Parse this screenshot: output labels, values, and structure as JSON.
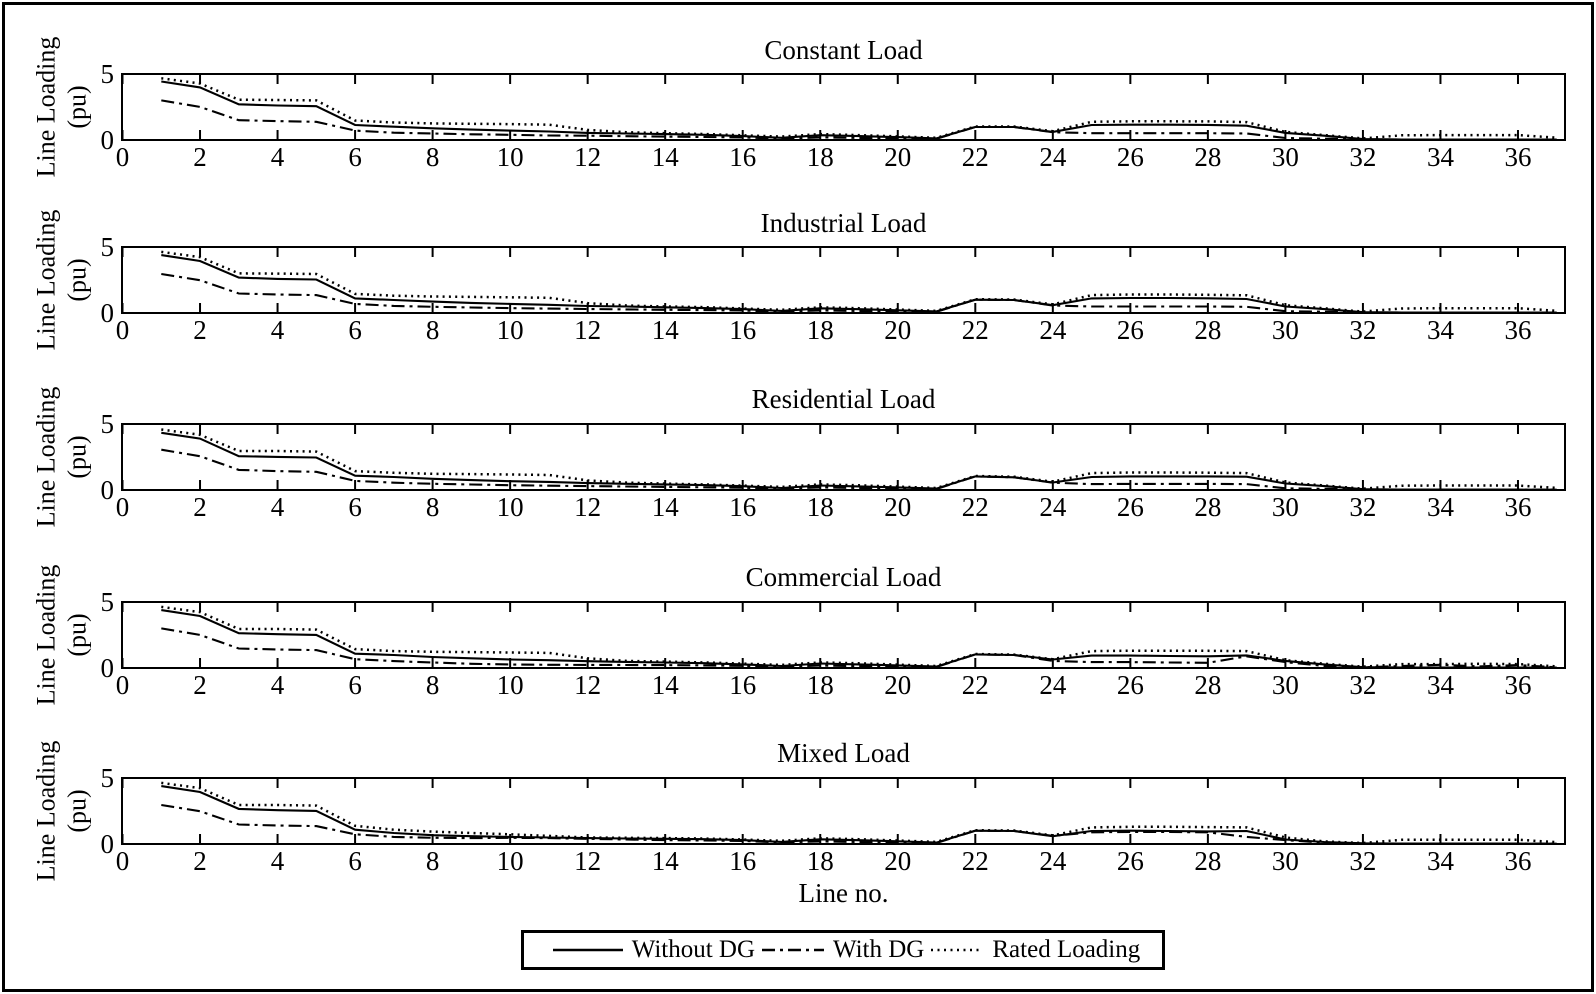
{
  "figure": {
    "background": "#ffffff",
    "foreground": "#000000",
    "xaxis_label": "Line no.",
    "ylabel_line1": "Line Loading",
    "ylabel_line2": "(pu)",
    "ytick_top": "5",
    "ytick_bottom": "0"
  },
  "chart_data": {
    "type": "line",
    "xlabel": "Line no.",
    "ylabel": "Line Loading (pu)",
    "ylim": [
      0,
      5
    ],
    "xlim": [
      0,
      37.2
    ],
    "x_ticks": [
      0,
      2,
      4,
      6,
      8,
      10,
      12,
      14,
      16,
      18,
      20,
      22,
      24,
      26,
      28,
      30,
      32,
      34,
      36
    ],
    "y_ticks": [
      0,
      5
    ],
    "grid": "off",
    "legend_position": "bottom-center",
    "line_color": "#000000",
    "x": [
      1,
      2,
      3,
      4,
      5,
      6,
      7,
      8,
      9,
      10,
      11,
      12,
      13,
      14,
      15,
      16,
      17,
      18,
      19,
      20,
      21,
      22,
      23,
      24,
      25,
      26,
      27,
      28,
      29,
      30,
      31,
      32,
      33,
      34,
      35,
      36,
      37
    ],
    "legend": [
      {
        "label": "Without DG",
        "style": "solid"
      },
      {
        "label": "With DG",
        "style": "dashdot"
      },
      {
        "label": "Rated Loading",
        "style": "dotted"
      }
    ],
    "panels": [
      {
        "title": "Constant Load",
        "series": {
          "without_dg": [
            4.5,
            4.05,
            2.75,
            2.65,
            2.6,
            1.15,
            1.02,
            0.9,
            0.8,
            0.72,
            0.65,
            0.55,
            0.5,
            0.45,
            0.4,
            0.3,
            0.17,
            0.37,
            0.3,
            0.22,
            0.12,
            1.0,
            1.0,
            0.62,
            1.15,
            1.18,
            1.18,
            1.16,
            1.1,
            0.55,
            0.33,
            0.07,
            0.04,
            0.04,
            0.04,
            0.04,
            0.03
          ],
          "with_dg": [
            3.05,
            2.55,
            1.52,
            1.45,
            1.4,
            0.72,
            0.56,
            0.5,
            0.44,
            0.4,
            0.35,
            0.33,
            0.29,
            0.26,
            0.23,
            0.2,
            0.1,
            0.2,
            0.16,
            0.12,
            0.1,
            1.0,
            1.0,
            0.6,
            0.52,
            0.52,
            0.52,
            0.52,
            0.5,
            0.15,
            0.1,
            0.04,
            0.03,
            0.03,
            0.03,
            0.03,
            0.02
          ],
          "rated": [
            4.75,
            4.35,
            3.1,
            3.08,
            3.05,
            1.5,
            1.35,
            1.28,
            1.25,
            1.22,
            1.18,
            0.78,
            0.6,
            0.52,
            0.46,
            0.36,
            0.26,
            0.45,
            0.38,
            0.28,
            0.17,
            1.04,
            1.04,
            0.68,
            1.4,
            1.44,
            1.44,
            1.43,
            1.38,
            0.62,
            0.38,
            0.12,
            0.36,
            0.38,
            0.38,
            0.38,
            0.18
          ]
        }
      },
      {
        "title": "Industrial Load",
        "series": {
          "without_dg": [
            4.45,
            4.0,
            2.72,
            2.62,
            2.58,
            1.12,
            1.0,
            0.88,
            0.78,
            0.7,
            0.63,
            0.54,
            0.5,
            0.44,
            0.38,
            0.3,
            0.16,
            0.36,
            0.29,
            0.21,
            0.12,
            1.02,
            1.0,
            0.6,
            1.12,
            1.15,
            1.15,
            1.13,
            1.08,
            0.5,
            0.3,
            0.06,
            0.04,
            0.04,
            0.04,
            0.04,
            0.03
          ],
          "with_dg": [
            3.0,
            2.52,
            1.5,
            1.42,
            1.38,
            0.7,
            0.55,
            0.48,
            0.42,
            0.38,
            0.34,
            0.31,
            0.28,
            0.25,
            0.22,
            0.19,
            0.1,
            0.2,
            0.15,
            0.12,
            0.09,
            1.02,
            1.0,
            0.58,
            0.5,
            0.5,
            0.5,
            0.5,
            0.48,
            0.14,
            0.1,
            0.04,
            0.03,
            0.03,
            0.03,
            0.03,
            0.02
          ],
          "rated": [
            4.7,
            4.3,
            3.05,
            3.03,
            3.0,
            1.47,
            1.33,
            1.27,
            1.24,
            1.21,
            1.17,
            0.76,
            0.58,
            0.5,
            0.45,
            0.35,
            0.25,
            0.44,
            0.37,
            0.27,
            0.16,
            1.06,
            1.04,
            0.66,
            1.38,
            1.42,
            1.42,
            1.4,
            1.36,
            0.6,
            0.36,
            0.11,
            0.35,
            0.37,
            0.37,
            0.37,
            0.17
          ]
        }
      },
      {
        "title": "Residential Load",
        "series": {
          "without_dg": [
            4.4,
            3.95,
            2.6,
            2.55,
            2.5,
            1.1,
            1.0,
            0.86,
            0.76,
            0.68,
            0.62,
            0.53,
            0.48,
            0.43,
            0.38,
            0.29,
            0.15,
            0.35,
            0.28,
            0.2,
            0.11,
            1.05,
            0.98,
            0.58,
            1.0,
            1.05,
            1.05,
            1.05,
            1.02,
            0.5,
            0.3,
            0.06,
            0.03,
            0.03,
            0.03,
            0.03,
            0.02
          ],
          "with_dg": [
            3.1,
            2.6,
            1.55,
            1.45,
            1.4,
            0.7,
            0.56,
            0.48,
            0.42,
            0.37,
            0.33,
            0.3,
            0.27,
            0.24,
            0.21,
            0.18,
            0.1,
            0.2,
            0.15,
            0.11,
            0.08,
            1.05,
            0.98,
            0.56,
            0.45,
            0.47,
            0.47,
            0.47,
            0.45,
            0.13,
            0.09,
            0.04,
            0.02,
            0.02,
            0.02,
            0.02,
            0.02
          ],
          "rated": [
            4.65,
            4.25,
            3.0,
            3.0,
            2.95,
            1.45,
            1.32,
            1.25,
            1.22,
            1.19,
            1.15,
            0.74,
            0.57,
            0.49,
            0.43,
            0.34,
            0.24,
            0.43,
            0.36,
            0.26,
            0.15,
            1.08,
            1.02,
            0.64,
            1.3,
            1.35,
            1.35,
            1.33,
            1.3,
            0.58,
            0.35,
            0.1,
            0.33,
            0.35,
            0.35,
            0.35,
            0.16
          ]
        }
      },
      {
        "title": "Commercial Load",
        "series": {
          "without_dg": [
            4.45,
            4.0,
            2.68,
            2.6,
            2.55,
            1.1,
            1.0,
            0.85,
            0.75,
            0.65,
            0.6,
            0.52,
            0.47,
            0.42,
            0.37,
            0.28,
            0.15,
            0.35,
            0.28,
            0.2,
            0.11,
            1.05,
            1.0,
            0.65,
            0.95,
            0.95,
            0.92,
            0.9,
            0.97,
            0.55,
            0.28,
            0.06,
            0.04,
            0.04,
            0.04,
            0.04,
            0.03
          ],
          "with_dg": [
            3.05,
            2.55,
            1.5,
            1.42,
            1.38,
            0.68,
            0.53,
            0.42,
            0.32,
            0.27,
            0.25,
            0.24,
            0.23,
            0.22,
            0.2,
            0.17,
            0.09,
            0.19,
            0.14,
            0.11,
            0.08,
            1.05,
            1.0,
            0.55,
            0.45,
            0.45,
            0.42,
            0.4,
            0.9,
            0.45,
            0.15,
            0.05,
            0.15,
            0.25,
            0.12,
            0.22,
            0.05
          ],
          "rated": [
            4.7,
            4.3,
            3.0,
            3.0,
            2.95,
            1.45,
            1.3,
            1.25,
            1.22,
            1.19,
            1.16,
            0.75,
            0.55,
            0.49,
            0.43,
            0.34,
            0.24,
            0.43,
            0.36,
            0.26,
            0.15,
            1.08,
            1.03,
            0.68,
            1.3,
            1.33,
            1.33,
            1.32,
            1.3,
            0.6,
            0.33,
            0.1,
            0.3,
            0.3,
            0.32,
            0.3,
            0.12
          ]
        }
      },
      {
        "title": "Mixed Load",
        "series": {
          "without_dg": [
            4.45,
            4.0,
            2.7,
            2.6,
            2.55,
            1.1,
            0.85,
            0.68,
            0.6,
            0.55,
            0.5,
            0.45,
            0.42,
            0.4,
            0.37,
            0.3,
            0.16,
            0.36,
            0.29,
            0.21,
            0.11,
            1.02,
            1.0,
            0.6,
            1.0,
            1.02,
            1.0,
            0.97,
            1.0,
            0.35,
            0.15,
            0.05,
            0.03,
            0.03,
            0.03,
            0.03,
            0.02
          ],
          "with_dg": [
            3.0,
            2.52,
            1.5,
            1.42,
            1.38,
            0.75,
            0.55,
            0.48,
            0.45,
            0.48,
            0.45,
            0.4,
            0.35,
            0.3,
            0.27,
            0.24,
            0.12,
            0.2,
            0.15,
            0.11,
            0.08,
            1.02,
            1.0,
            0.62,
            0.9,
            0.93,
            0.92,
            0.9,
            0.55,
            0.3,
            0.1,
            0.04,
            0.02,
            0.02,
            0.02,
            0.02,
            0.02
          ],
          "rated": [
            4.7,
            4.3,
            3.0,
            3.0,
            2.95,
            1.4,
            1.1,
            0.95,
            0.85,
            0.75,
            0.62,
            0.5,
            0.48,
            0.45,
            0.42,
            0.35,
            0.25,
            0.44,
            0.37,
            0.27,
            0.16,
            1.06,
            1.04,
            0.66,
            1.28,
            1.32,
            1.32,
            1.3,
            1.28,
            0.5,
            0.2,
            0.08,
            0.32,
            0.33,
            0.33,
            0.33,
            0.14
          ]
        }
      }
    ]
  }
}
